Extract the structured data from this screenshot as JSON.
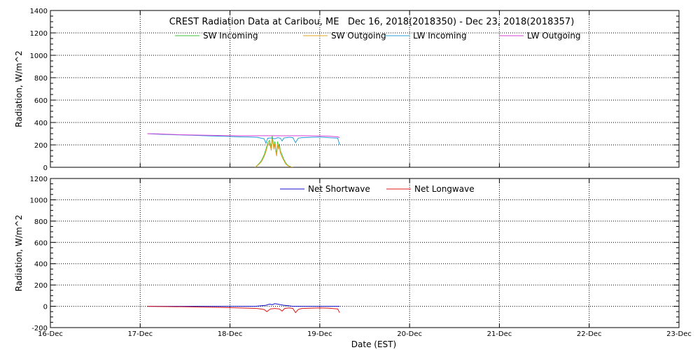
{
  "chart_data": [
    {
      "type": "line",
      "title": "CREST Radiation Data at Caribou, ME   Dec 16, 2018(2018350) - Dec 23, 2018(2018357)",
      "ylabel": "Radiation, W/m^2",
      "xlabel": "",
      "ylim": [
        0,
        1400
      ],
      "yticks": [
        0,
        200,
        400,
        600,
        800,
        1000,
        1200,
        1400
      ],
      "xlim": [
        0,
        7
      ],
      "grid": true,
      "legend": "top",
      "series": [
        {
          "name": "SW Incoming",
          "color": "#3cc43c",
          "x": [
            2.28,
            2.32,
            2.35,
            2.38,
            2.4,
            2.42,
            2.44,
            2.46,
            2.47,
            2.49,
            2.5,
            2.51,
            2.52,
            2.53,
            2.54,
            2.55,
            2.56,
            2.57,
            2.58,
            2.6,
            2.62,
            2.64,
            2.66,
            2.68,
            2.7
          ],
          "y": [
            0,
            30,
            60,
            110,
            160,
            220,
            240,
            170,
            280,
            180,
            230,
            160,
            120,
            230,
            180,
            210,
            150,
            130,
            110,
            70,
            40,
            20,
            10,
            5,
            0
          ]
        },
        {
          "name": "SW Outgoing",
          "color": "#e6a020",
          "x": [
            2.28,
            2.32,
            2.35,
            2.38,
            2.4,
            2.42,
            2.44,
            2.46,
            2.47,
            2.49,
            2.5,
            2.51,
            2.52,
            2.53,
            2.54,
            2.55,
            2.56,
            2.57,
            2.58,
            2.6,
            2.62,
            2.64,
            2.66,
            2.68,
            2.7
          ],
          "y": [
            0,
            25,
            50,
            95,
            140,
            200,
            220,
            150,
            260,
            160,
            210,
            140,
            100,
            210,
            160,
            190,
            130,
            110,
            90,
            60,
            30,
            15,
            8,
            3,
            0
          ]
        },
        {
          "name": "LW Incoming",
          "color": "#28a0d8",
          "x": [
            1.08,
            1.2,
            1.4,
            1.6,
            1.8,
            2.0,
            2.1,
            2.2,
            2.3,
            2.38,
            2.4,
            2.42,
            2.46,
            2.5,
            2.53,
            2.56,
            2.58,
            2.6,
            2.63,
            2.66,
            2.7,
            2.73,
            2.76,
            2.8,
            2.9,
            3.0,
            3.1,
            3.2,
            3.22
          ],
          "y": [
            300,
            295,
            290,
            285,
            280,
            275,
            272,
            270,
            268,
            255,
            215,
            260,
            262,
            255,
            265,
            260,
            235,
            262,
            265,
            268,
            265,
            220,
            260,
            265,
            268,
            270,
            265,
            260,
            200
          ]
        },
        {
          "name": "LW Outgoing",
          "color": "#d840d8",
          "x": [
            1.08,
            1.2,
            1.4,
            1.6,
            1.8,
            2.0,
            2.2,
            2.4,
            2.6,
            2.8,
            3.0,
            3.1,
            3.2,
            3.22
          ],
          "y": [
            300,
            298,
            292,
            288,
            285,
            282,
            281,
            282,
            281,
            282,
            280,
            278,
            272,
            265
          ]
        }
      ]
    },
    {
      "type": "line",
      "title": "",
      "ylabel": "Radiation, W/m^2",
      "xlabel": "Date (EST)",
      "ylim": [
        -200,
        1200
      ],
      "yticks": [
        -200,
        0,
        200,
        400,
        600,
        800,
        1000,
        1200
      ],
      "xlim": [
        0,
        7
      ],
      "xticks": [
        "16-Dec",
        "17-Dec",
        "18-Dec",
        "19-Dec",
        "20-Dec",
        "21-Dec",
        "22-Dec",
        "23-Dec"
      ],
      "grid": true,
      "legend": "top",
      "series": [
        {
          "name": "Net Shortwave",
          "color": "#1010c8",
          "x": [
            1.08,
            2.28,
            2.35,
            2.4,
            2.44,
            2.47,
            2.5,
            2.53,
            2.56,
            2.6,
            2.65,
            2.7,
            3.0,
            3.22
          ],
          "y": [
            0,
            0,
            5,
            10,
            20,
            15,
            25,
            20,
            15,
            10,
            5,
            0,
            0,
            0
          ]
        },
        {
          "name": "Net Longwave",
          "color": "#e01818",
          "x": [
            1.08,
            1.3,
            1.5,
            1.7,
            1.9,
            2.1,
            2.3,
            2.38,
            2.41,
            2.45,
            2.5,
            2.55,
            2.58,
            2.61,
            2.66,
            2.7,
            2.73,
            2.76,
            2.8,
            2.9,
            3.0,
            3.1,
            3.2,
            3.22
          ],
          "y": [
            0,
            -3,
            -5,
            -8,
            -10,
            -15,
            -20,
            -30,
            -50,
            -25,
            -20,
            -25,
            -45,
            -20,
            -15,
            -20,
            -60,
            -30,
            -20,
            -18,
            -15,
            -18,
            -25,
            -60
          ]
        }
      ]
    }
  ]
}
